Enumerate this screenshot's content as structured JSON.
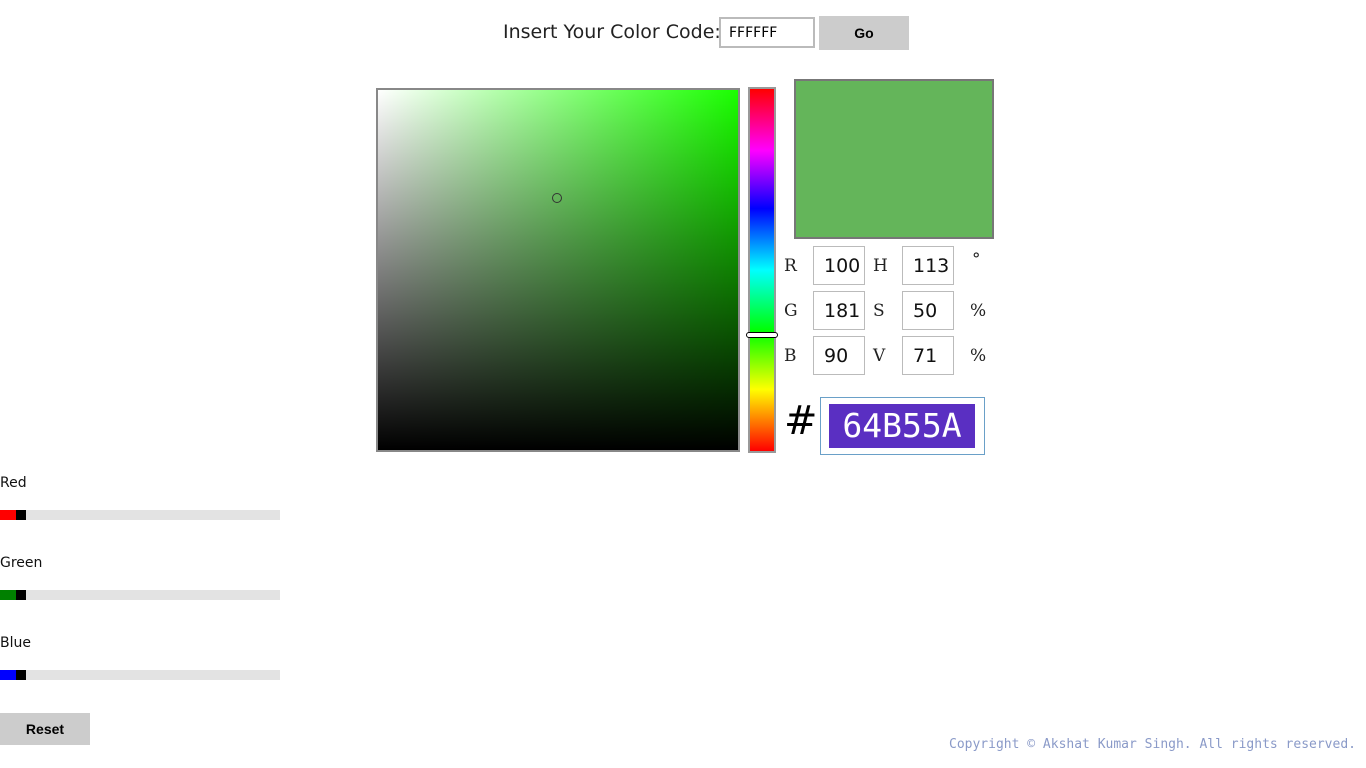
{
  "header": {
    "label": "Insert Your Color Code:",
    "code_value": "FFFFFF",
    "go_label": "Go"
  },
  "picker": {
    "hue_color": "#1aff00",
    "preview_color": "#64B55A",
    "hue_degrees": 113
  },
  "fields": {
    "r_label": "R",
    "r": "100",
    "g_label": "G",
    "g": "181",
    "b_label": "B",
    "b": "90",
    "h_label": "H",
    "h": "113",
    "s_label": "S",
    "s": "50",
    "v_label": "V",
    "v": "71",
    "h_unit": "°",
    "s_unit": "%",
    "v_unit": "%"
  },
  "hex": {
    "prefix": "#",
    "value": "64B55A"
  },
  "sliders": [
    {
      "label": "Red",
      "color": "#ff0000",
      "percent": 6
    },
    {
      "label": "Green",
      "color": "#008000",
      "percent": 6
    },
    {
      "label": "Blue",
      "color": "#0000ff",
      "percent": 6
    }
  ],
  "reset_label": "Reset",
  "footer": "Copyright © Akshat Kumar Singh. All rights reserved."
}
